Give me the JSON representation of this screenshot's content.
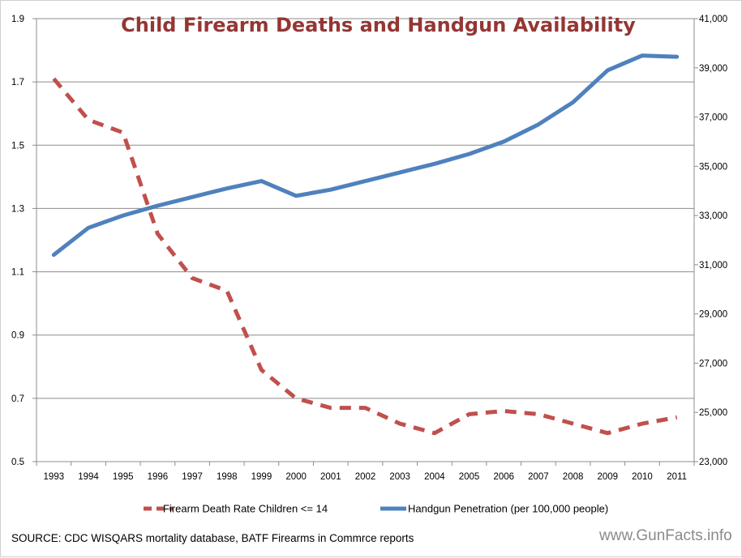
{
  "chart_data": {
    "type": "line",
    "title": "Child Firearm Deaths and Handgun Availability",
    "x": [
      "1993",
      "1994",
      "1995",
      "1996",
      "1997",
      "1998",
      "1999",
      "2000",
      "2001",
      "2002",
      "2003",
      "2004",
      "2005",
      "2006",
      "2007",
      "2008",
      "2009",
      "2010",
      "2011"
    ],
    "series": [
      {
        "name": "Firearm Death Rate Children <= 14",
        "axis": "left",
        "style": "dashed",
        "color": "#c0504d",
        "values": [
          1.71,
          1.58,
          1.54,
          1.22,
          1.08,
          1.04,
          0.79,
          0.7,
          0.67,
          0.67,
          0.62,
          0.59,
          0.65,
          0.66,
          0.65,
          0.62,
          0.59,
          0.62,
          0.64
        ]
      },
      {
        "name": "Handgun Penetration (per 100,000 people)",
        "axis": "right",
        "style": "solid",
        "color": "#4f81bd",
        "values": [
          31400,
          32500,
          33000,
          33400,
          33750,
          34100,
          34400,
          33800,
          34050,
          34400,
          34750,
          35100,
          35500,
          36000,
          36700,
          37600,
          38900,
          39500,
          39450
        ]
      }
    ],
    "y_left": {
      "min": 0.5,
      "max": 1.9,
      "ticks": [
        "0.5",
        "0.7",
        "0.9",
        "1.1",
        "1.3",
        "1.5",
        "1.7",
        "1.9"
      ]
    },
    "y_right": {
      "min": 23000,
      "max": 41000,
      "ticks": [
        "23,000",
        "25,000",
        "27,000",
        "29,000",
        "31,000",
        "33,000",
        "35,000",
        "37,000",
        "39,000",
        "41,000"
      ]
    },
    "grid": "horizontal",
    "legend_position": "bottom"
  },
  "source_note": "SOURCE: CDC WISQARS mortality database, BATF Firearms in Commrce reports",
  "watermark": "www.GunFacts.info"
}
